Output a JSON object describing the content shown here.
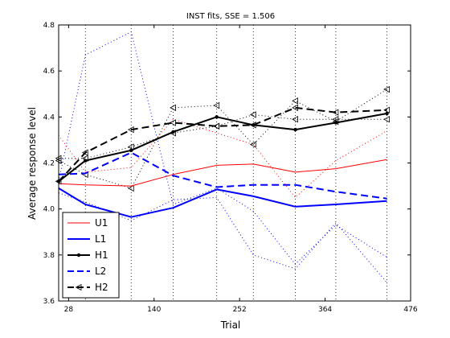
{
  "chart_data": {
    "type": "line",
    "title": "INST fits, SSE = 1.506",
    "xlabel": "Trial",
    "ylabel": "Average response level",
    "xlim": [
      15,
      476
    ],
    "ylim": [
      3.6,
      4.8
    ],
    "xticks": [
      28,
      140,
      252,
      364,
      476
    ],
    "yticks": [
      3.6,
      3.8,
      4.0,
      4.2,
      4.4,
      4.6,
      4.8
    ],
    "grid": "x-dotted",
    "legend_position": "bottom-left",
    "series": [
      {
        "name": "U1",
        "color": "#ff0000",
        "style": "solid",
        "width": 1,
        "marker": "none",
        "x": [
          15,
          50,
          110,
          165,
          222,
          270,
          325,
          378,
          445
        ],
        "y": [
          4.11,
          4.105,
          4.1,
          4.15,
          4.19,
          4.195,
          4.16,
          4.175,
          4.215
        ]
      },
      {
        "name": "L1",
        "color": "#0000ff",
        "style": "solid",
        "width": 2,
        "marker": "none",
        "x": [
          15,
          50,
          110,
          165,
          222,
          270,
          325,
          378,
          445
        ],
        "y": [
          4.09,
          4.02,
          3.965,
          4.005,
          4.085,
          4.055,
          4.01,
          4.02,
          4.035
        ]
      },
      {
        "name": "H1",
        "color": "#000000",
        "style": "solid",
        "width": 2,
        "marker": "dot",
        "x": [
          15,
          50,
          110,
          165,
          222,
          270,
          325,
          378,
          445
        ],
        "y": [
          4.12,
          4.21,
          4.255,
          4.335,
          4.4,
          4.365,
          4.345,
          4.375,
          4.415
        ]
      },
      {
        "name": "L2",
        "color": "#0000ff",
        "style": "dashed",
        "width": 2,
        "marker": "none",
        "x": [
          15,
          50,
          110,
          165,
          222,
          270,
          325,
          378,
          445
        ],
        "y": [
          4.15,
          4.155,
          4.245,
          4.145,
          4.095,
          4.105,
          4.105,
          4.075,
          4.045
        ]
      },
      {
        "name": "H2",
        "color": "#000000",
        "style": "dashed",
        "width": 2,
        "marker": "triangle-left",
        "x": [
          15,
          50,
          110,
          165,
          222,
          270,
          325,
          378,
          445
        ],
        "y": [
          4.12,
          4.245,
          4.345,
          4.375,
          4.36,
          4.365,
          4.44,
          4.42,
          4.43
        ]
      },
      {
        "name": "",
        "color": "#0000ff",
        "style": "dotted",
        "width": 1,
        "marker": "none",
        "x": [
          15,
          50,
          110,
          165,
          222,
          270,
          325,
          378,
          445
        ],
        "y": [
          4.12,
          4.67,
          4.77,
          4.02,
          4.09,
          3.99,
          3.76,
          3.93,
          3.79
        ]
      },
      {
        "name": "",
        "color": "#0000ff",
        "style": "dotted",
        "width": 1,
        "marker": "none",
        "x": [
          15,
          50,
          110,
          165,
          222,
          270,
          325,
          378,
          445
        ],
        "y": [
          4.07,
          4.03,
          3.95,
          4.04,
          4.05,
          3.8,
          3.74,
          3.94,
          3.68
        ]
      },
      {
        "name": "",
        "color": "#ff0000",
        "style": "dotted",
        "width": 1,
        "marker": "none",
        "x": [
          15,
          50,
          110,
          165,
          222,
          270,
          325,
          378,
          445
        ],
        "y": [
          4.32,
          4.16,
          4.18,
          4.39,
          4.33,
          4.28,
          4.05,
          4.21,
          4.34
        ]
      },
      {
        "name": "",
        "color": "#000000",
        "style": "dotted",
        "width": 1,
        "marker": "triangle-left",
        "x": [
          15,
          50,
          110,
          165,
          222,
          270,
          325,
          378,
          445
        ],
        "y": [
          4.21,
          4.15,
          4.09,
          4.44,
          4.45,
          4.28,
          4.47,
          4.38,
          4.52
        ]
      },
      {
        "name": "",
        "color": "#000000",
        "style": "dotted",
        "width": 1,
        "marker": "triangle-left",
        "x": [
          15,
          50,
          110,
          165,
          222,
          270,
          325,
          378,
          445
        ],
        "y": [
          4.22,
          4.22,
          4.27,
          4.33,
          4.36,
          4.41,
          4.39,
          4.39,
          4.39
        ]
      }
    ]
  }
}
